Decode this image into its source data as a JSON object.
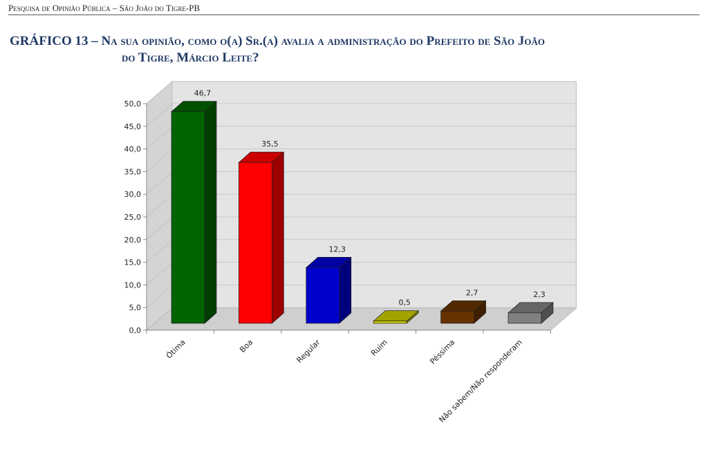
{
  "header": "Pesquisa de Opinião Pública – São João do Tigre-PB",
  "chart_data": {
    "type": "bar",
    "title_line1": "GRÁFICO 13 – Na sua opinião, como o(a) Sr.(a) avalia a administração do Prefeito de São João",
    "title_line2": "do Tigre, Márcio Leite?",
    "categories": [
      "Ótima",
      "Boa",
      "Regular",
      "Ruim",
      "Péssima",
      "Não sabem/Não responderam"
    ],
    "values": [
      46.7,
      35.5,
      12.3,
      0.5,
      2.7,
      2.3
    ],
    "value_labels": [
      "46,7",
      "35,5",
      "12,3",
      "0,5",
      "2,7",
      "2,3"
    ],
    "colors": [
      "#006400",
      "#ff0000",
      "#0000cc",
      "#cccc00",
      "#663300",
      "#808080"
    ],
    "yticks": [
      "0,0",
      "5,0",
      "10,0",
      "15,0",
      "20,0",
      "25,0",
      "30,0",
      "35,0",
      "40,0",
      "45,0",
      "50,0"
    ],
    "ylim": [
      0,
      50
    ],
    "xlabel": "",
    "ylabel": "",
    "grid": true,
    "style": "3d-column"
  }
}
